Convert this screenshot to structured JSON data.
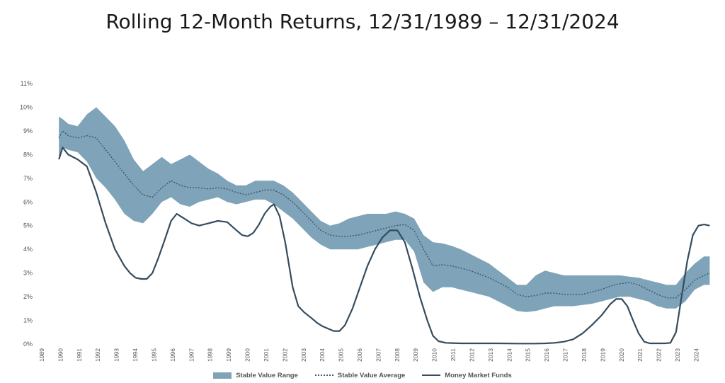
{
  "chart_data": {
    "type": "line",
    "title": "Rolling 12-Month Returns, 12/31/1989 – 12/31/2024",
    "xlabel": "",
    "ylabel": "",
    "ylim": [
      0,
      11
    ],
    "xlim": [
      1989,
      2024.4
    ],
    "y_ticks": [
      "0%",
      "1%",
      "2%",
      "3%",
      "4%",
      "5%",
      "6%",
      "7%",
      "8%",
      "9%",
      "10%",
      "11%"
    ],
    "x_ticks": [
      "1989",
      "1990",
      "1991",
      "1992",
      "1993",
      "1994",
      "1995",
      "1996",
      "1997",
      "1998",
      "1999",
      "2000",
      "2001",
      "2002",
      "2003",
      "2004",
      "2005",
      "2006",
      "2007",
      "2008",
      "2009",
      "2010",
      "2011",
      "2012",
      "2013",
      "2014",
      "2015",
      "2016",
      "2017",
      "2018",
      "2019",
      "2020",
      "2021",
      "2022",
      "2023",
      "2024"
    ],
    "grid": false,
    "legend_position": "bottom",
    "colors": {
      "range": "#7fa3b8",
      "average": "#3a5a72",
      "money_market": "#344c5e"
    },
    "series": [
      {
        "name": "Stable Value Range",
        "style": "band",
        "x": [
          1989.5,
          1989.7,
          1990,
          1990.5,
          1991,
          1991.5,
          1992,
          1992.5,
          1993,
          1993.5,
          1994,
          1994.5,
          1995,
          1995.5,
          1996,
          1996.5,
          1997,
          1997.5,
          1998,
          1998.5,
          1999,
          1999.5,
          2000,
          2000.5,
          2001,
          2001.5,
          2002,
          2002.5,
          2003,
          2003.5,
          2004,
          2004.5,
          2005,
          2005.5,
          2006,
          2006.5,
          2007,
          2007.5,
          2008,
          2008.5,
          2009,
          2009.5,
          2010,
          2010.5,
          2011,
          2011.5,
          2012,
          2012.5,
          2013,
          2013.5,
          2014,
          2014.5,
          2015,
          2015.5,
          2016,
          2016.5,
          2017,
          2017.5,
          2018,
          2018.5,
          2019,
          2019.5,
          2020,
          2020.5,
          2021,
          2021.5,
          2022,
          2022.5,
          2023,
          2023.5,
          2024,
          2024.3
        ],
        "upper": [
          9.6,
          9.5,
          9.3,
          9.2,
          9.7,
          10.0,
          9.6,
          9.2,
          8.6,
          7.8,
          7.3,
          7.6,
          7.9,
          7.6,
          7.8,
          8.0,
          7.7,
          7.4,
          7.2,
          6.9,
          6.7,
          6.7,
          6.9,
          6.9,
          6.9,
          6.7,
          6.4,
          6.0,
          5.6,
          5.2,
          5.0,
          5.1,
          5.3,
          5.4,
          5.5,
          5.5,
          5.5,
          5.6,
          5.5,
          5.3,
          4.6,
          4.3,
          4.25,
          4.15,
          4.0,
          3.8,
          3.6,
          3.4,
          3.1,
          2.8,
          2.5,
          2.5,
          2.9,
          3.1,
          3.0,
          2.9,
          2.9,
          2.9,
          2.9,
          2.9,
          2.9,
          2.9,
          2.85,
          2.8,
          2.7,
          2.6,
          2.5,
          2.5,
          3.0,
          3.4,
          3.7,
          3.7
        ],
        "lower": [
          7.9,
          8.3,
          8.2,
          8.1,
          7.7,
          7.0,
          6.6,
          6.1,
          5.5,
          5.2,
          5.1,
          5.5,
          6.0,
          6.2,
          5.9,
          5.8,
          6.0,
          6.1,
          6.2,
          6.0,
          5.9,
          6.0,
          6.1,
          6.1,
          5.9,
          5.6,
          5.3,
          4.9,
          4.5,
          4.2,
          4.0,
          4.0,
          4.0,
          4.0,
          4.1,
          4.2,
          4.3,
          4.4,
          4.4,
          3.9,
          2.6,
          2.2,
          2.4,
          2.4,
          2.3,
          2.2,
          2.1,
          2.0,
          1.8,
          1.6,
          1.4,
          1.35,
          1.4,
          1.5,
          1.6,
          1.6,
          1.6,
          1.65,
          1.7,
          1.8,
          1.9,
          2.0,
          2.0,
          1.9,
          1.8,
          1.6,
          1.5,
          1.5,
          1.8,
          2.3,
          2.5,
          2.5
        ]
      },
      {
        "name": "Stable Value Average",
        "style": "dotted",
        "x": [
          1989.5,
          1989.7,
          1990,
          1990.5,
          1991,
          1991.5,
          1992,
          1992.5,
          1993,
          1993.5,
          1994,
          1994.5,
          1995,
          1995.5,
          1996,
          1996.5,
          1997,
          1997.5,
          1998,
          1998.5,
          1999,
          1999.5,
          2000,
          2000.5,
          2001,
          2001.5,
          2002,
          2002.5,
          2003,
          2003.5,
          2004,
          2004.5,
          2005,
          2005.5,
          2006,
          2006.5,
          2007,
          2007.5,
          2008,
          2008.5,
          2009,
          2009.5,
          2010,
          2010.5,
          2011,
          2011.5,
          2012,
          2012.5,
          2013,
          2013.5,
          2014,
          2014.5,
          2015,
          2015.5,
          2016,
          2016.5,
          2017,
          2017.5,
          2018,
          2018.5,
          2019,
          2019.5,
          2020,
          2020.5,
          2021,
          2021.5,
          2022,
          2022.5,
          2023,
          2023.5,
          2024,
          2024.3
        ],
        "values": [
          8.7,
          9.0,
          8.8,
          8.7,
          8.8,
          8.7,
          8.2,
          7.7,
          7.2,
          6.7,
          6.3,
          6.2,
          6.6,
          6.9,
          6.7,
          6.6,
          6.6,
          6.55,
          6.6,
          6.55,
          6.4,
          6.3,
          6.4,
          6.5,
          6.5,
          6.3,
          6.0,
          5.6,
          5.2,
          4.8,
          4.6,
          4.55,
          4.55,
          4.6,
          4.7,
          4.8,
          4.9,
          5.0,
          5.05,
          4.8,
          4.0,
          3.3,
          3.35,
          3.3,
          3.2,
          3.1,
          2.95,
          2.8,
          2.6,
          2.4,
          2.1,
          2.0,
          2.05,
          2.15,
          2.15,
          2.1,
          2.1,
          2.1,
          2.2,
          2.3,
          2.45,
          2.55,
          2.6,
          2.5,
          2.3,
          2.1,
          1.95,
          1.95,
          2.3,
          2.7,
          2.9,
          3.0
        ]
      },
      {
        "name": "Money Market Funds",
        "style": "solid",
        "x": [
          1989.5,
          1989.7,
          1990,
          1990.5,
          1991,
          1991.5,
          1992,
          1992.5,
          1993,
          1993.3,
          1993.6,
          1993.9,
          1994.2,
          1994.5,
          1994.8,
          1995.2,
          1995.5,
          1995.8,
          1996.2,
          1996.6,
          1997,
          1997.5,
          1998,
          1998.5,
          1999,
          1999.3,
          1999.6,
          1999.9,
          2000.2,
          2000.5,
          2000.8,
          2001,
          2001.3,
          2001.6,
          2002,
          2002.3,
          2002.6,
          2003,
          2003.3,
          2003.6,
          2003.9,
          2004.2,
          2004.5,
          2004.8,
          2005.2,
          2005.6,
          2006,
          2006.4,
          2006.8,
          2007.2,
          2007.6,
          2008,
          2008.4,
          2008.8,
          2009.2,
          2009.5,
          2009.8,
          2010.2,
          2011,
          2012,
          2013,
          2014,
          2015,
          2015.5,
          2016,
          2016.5,
          2017,
          2017.5,
          2018,
          2018.5,
          2019,
          2019.3,
          2019.6,
          2019.9,
          2020.2,
          2020.5,
          2020.8,
          2021.1,
          2021.5,
          2021.9,
          2022.2,
          2022.5,
          2022.8,
          2023.1,
          2023.4,
          2023.7,
          2024,
          2024.3
        ],
        "values": [
          7.8,
          8.3,
          8.0,
          7.8,
          7.5,
          6.4,
          5.1,
          4.0,
          3.3,
          3.0,
          2.8,
          2.75,
          2.75,
          3.0,
          3.6,
          4.5,
          5.2,
          5.5,
          5.3,
          5.1,
          5.0,
          5.1,
          5.2,
          5.15,
          4.8,
          4.6,
          4.55,
          4.7,
          5.05,
          5.5,
          5.8,
          5.9,
          5.4,
          4.3,
          2.4,
          1.6,
          1.35,
          1.1,
          0.9,
          0.75,
          0.65,
          0.55,
          0.55,
          0.8,
          1.5,
          2.4,
          3.3,
          4.0,
          4.5,
          4.8,
          4.8,
          4.3,
          3.2,
          2.0,
          1.0,
          0.35,
          0.12,
          0.05,
          0.03,
          0.03,
          0.03,
          0.02,
          0.02,
          0.03,
          0.05,
          0.1,
          0.2,
          0.45,
          0.8,
          1.2,
          1.7,
          1.9,
          1.9,
          1.6,
          1.0,
          0.45,
          0.1,
          0.03,
          0.03,
          0.03,
          0.05,
          0.5,
          2.0,
          3.5,
          4.6,
          5.0,
          5.05,
          5.0
        ]
      }
    ]
  }
}
